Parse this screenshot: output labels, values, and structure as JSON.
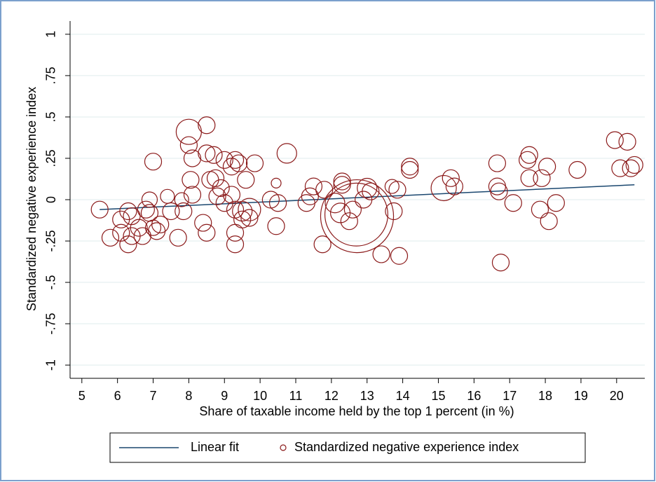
{
  "chart_data": {
    "type": "scatter",
    "x_label": "Share of taxable income held by the top 1 percent (in %)",
    "y_label": "Standardized negative experience index",
    "xlim": [
      4.67,
      20.79
    ],
    "ylim": [
      -1.08,
      1.08
    ],
    "xticks": [
      5,
      6,
      7,
      8,
      9,
      10,
      11,
      12,
      13,
      14,
      15,
      16,
      17,
      18,
      19,
      20
    ],
    "yticks": [
      1,
      {
        "value": 0.75,
        "label": ".75"
      },
      {
        "value": 0.5,
        "label": ".5"
      },
      {
        "value": 0.25,
        "label": ".25"
      },
      0,
      {
        "value": -0.25,
        "label": "-.25"
      },
      {
        "value": -0.5,
        "label": "-.5"
      },
      {
        "value": -0.75,
        "label": "-.75"
      },
      -1
    ],
    "grid": true,
    "legend": "bottom",
    "series": [
      {
        "name": "Linear fit",
        "kind": "line",
        "color": "#1a476f",
        "x": [
          5.5,
          20.5
        ],
        "values": [
          -0.06,
          0.09
        ]
      },
      {
        "name": "Standardized negative experience index",
        "kind": "bubble",
        "color": "#8b1a1a",
        "x": [
          5.5,
          5.8,
          6.1,
          6.1,
          6.3,
          6.3,
          6.4,
          6.4,
          6.6,
          6.7,
          6.8,
          6.9,
          6.9,
          7.0,
          7.1,
          7.2,
          7.0,
          7.4,
          7.5,
          7.7,
          7.8,
          7.85,
          8.0,
          8.0,
          8.1,
          8.05,
          8.1,
          8.4,
          8.5,
          8.5,
          8.5,
          8.6,
          8.7,
          8.75,
          8.8,
          8.9,
          9.0,
          9.0,
          9.2,
          9.3,
          9.4,
          9.2,
          9.3,
          9.3,
          9.3,
          9.5,
          9.5,
          9.6,
          9.7,
          9.7,
          9.85,
          10.3,
          10.45,
          10.45,
          10.5,
          10.75,
          11.3,
          11.4,
          11.5,
          11.75,
          11.8,
          12.1,
          12.25,
          12.3,
          12.3,
          12.5,
          12.6,
          12.72,
          12.7,
          12.9,
          13.0,
          13.1,
          13.4,
          13.7,
          13.75,
          13.85,
          13.9,
          14.2,
          14.2,
          15.15,
          15.35,
          15.45,
          16.65,
          16.65,
          16.7,
          16.75,
          17.1,
          17.5,
          17.55,
          17.55,
          17.85,
          17.9,
          18.05,
          18.1,
          18.3,
          18.9,
          19.95,
          20.1,
          20.3,
          20.4,
          20.5
        ],
        "values": [
          -0.06,
          -0.23,
          -0.2,
          -0.12,
          -0.27,
          -0.07,
          -0.1,
          -0.22,
          -0.17,
          -0.22,
          -0.06,
          -0.08,
          0.0,
          -0.17,
          -0.19,
          -0.15,
          0.23,
          0.02,
          -0.07,
          -0.23,
          0.0,
          -0.07,
          0.41,
          0.33,
          0.25,
          0.12,
          0.03,
          -0.14,
          -0.2,
          0.45,
          0.28,
          0.12,
          0.27,
          0.13,
          0.02,
          0.07,
          0.24,
          -0.02,
          0.2,
          0.24,
          0.22,
          0.03,
          -0.06,
          -0.2,
          -0.27,
          -0.07,
          -0.12,
          0.12,
          -0.06,
          -0.11,
          0.22,
          0.0,
          0.1,
          -0.16,
          -0.02,
          0.28,
          -0.02,
          0.02,
          0.08,
          -0.27,
          0.06,
          -0.02,
          -0.08,
          0.11,
          0.09,
          -0.13,
          -0.06,
          -0.1,
          -0.09,
          0.0,
          0.07,
          0.05,
          -0.33,
          0.08,
          -0.07,
          0.06,
          -0.34,
          0.18,
          0.2,
          0.07,
          0.13,
          0.08,
          0.22,
          0.08,
          0.05,
          -0.38,
          -0.02,
          0.24,
          0.27,
          0.13,
          -0.06,
          0.13,
          0.2,
          -0.13,
          -0.02,
          0.18,
          0.36,
          0.19,
          0.35,
          0.19,
          0.21
        ],
        "sizes": [
          1,
          1,
          1,
          1,
          1,
          1,
          1,
          1,
          1,
          1,
          1,
          1,
          0.84,
          0.84,
          1,
          1,
          1,
          0.69,
          1,
          1,
          0.69,
          1,
          2.25,
          1,
          1,
          1,
          1,
          1,
          1,
          1,
          1,
          1,
          1,
          1,
          1,
          1,
          1,
          1,
          1,
          1,
          1,
          1,
          1,
          1,
          1,
          1.36,
          1,
          1,
          1.78,
          1,
          1,
          1,
          0.34,
          1,
          1,
          1.36,
          1,
          1,
          1,
          1,
          1,
          1.36,
          1.36,
          1,
          1,
          1,
          1,
          18.8,
          14,
          1,
          1.36,
          1,
          1,
          0.69,
          1,
          1,
          1,
          1,
          1,
          2.25,
          1,
          1,
          1,
          1,
          1,
          1,
          1,
          1,
          1,
          1,
          1,
          1,
          1,
          1,
          1,
          1,
          1,
          1,
          1,
          1,
          1
        ]
      }
    ]
  }
}
